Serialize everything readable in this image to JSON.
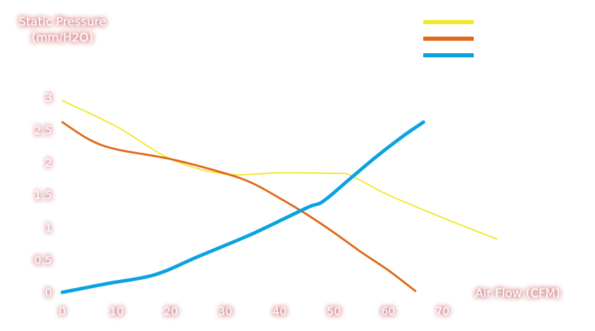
{
  "chart_data": {
    "type": "line",
    "title": "",
    "ylabel_lines": [
      "Static Pressure",
      "(mm/H2O)"
    ],
    "xlabel": "Air Flow (CFM)",
    "xlim": [
      0,
      75
    ],
    "ylim": [
      0,
      3.5
    ],
    "x_ticks": [
      0,
      10,
      20,
      30,
      40,
      50,
      60,
      70
    ],
    "x_tick_labels": [
      "0",
      "10",
      "20",
      "30",
      "40",
      "50",
      "60",
      "70"
    ],
    "y_ticks": [
      0,
      0.5,
      1,
      1.5,
      2,
      2.5,
      3
    ],
    "y_tick_labels": [
      "0",
      "0.5",
      "1",
      "1.5",
      "2",
      "2.5",
      "3"
    ],
    "grid": false,
    "legend_position": "top-right",
    "series": [
      {
        "color": "#f2e82a",
        "points": [
          [
            0,
            2.95
          ],
          [
            10,
            2.55
          ],
          [
            20,
            2.05
          ],
          [
            30,
            1.82
          ],
          [
            40,
            1.84
          ],
          [
            50,
            1.83
          ],
          [
            53,
            1.8
          ],
          [
            60,
            1.5
          ],
          [
            70,
            1.15
          ],
          [
            80,
            0.82
          ]
        ]
      },
      {
        "color": "#e06a1b",
        "points": [
          [
            0,
            2.62
          ],
          [
            5,
            2.35
          ],
          [
            10,
            2.2
          ],
          [
            20,
            2.05
          ],
          [
            30,
            1.83
          ],
          [
            35,
            1.68
          ],
          [
            40,
            1.45
          ],
          [
            45,
            1.2
          ],
          [
            50,
            0.92
          ],
          [
            55,
            0.62
          ],
          [
            60,
            0.34
          ],
          [
            65,
            0.02
          ]
        ]
      },
      {
        "color": "#0aa3e0",
        "points": [
          [
            0,
            0.0
          ],
          [
            8,
            0.13
          ],
          [
            17,
            0.27
          ],
          [
            25,
            0.55
          ],
          [
            35,
            0.9
          ],
          [
            45,
            1.3
          ],
          [
            48,
            1.4
          ],
          [
            53,
            1.75
          ],
          [
            58,
            2.1
          ],
          [
            63,
            2.42
          ],
          [
            66.5,
            2.62
          ]
        ]
      }
    ]
  }
}
